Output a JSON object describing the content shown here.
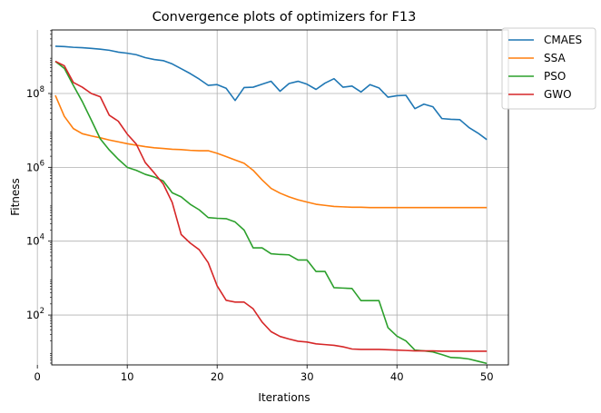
{
  "chart_data": {
    "type": "line",
    "title": "Convergence plots of optimizers for F13",
    "xlabel": "Iterations",
    "ylabel": "Fitness",
    "xlim": [
      1.6,
      52.4
    ],
    "ylim_log10": [
      0.65,
      9.72
    ],
    "yscale": "log",
    "xticks": [
      0,
      10,
      20,
      30,
      40,
      50
    ],
    "yticks": [
      {
        "exp": 2,
        "base": "10",
        "sup": "2"
      },
      {
        "exp": 4,
        "base": "10",
        "sup": "4"
      },
      {
        "exp": 6,
        "base": "10",
        "sup": "6"
      },
      {
        "exp": 8,
        "base": "10",
        "sup": "8"
      }
    ],
    "grid": true,
    "legend_position": "upper-right-outside",
    "x": [
      2,
      3,
      4,
      5,
      6,
      7,
      8,
      9,
      10,
      11,
      12,
      13,
      14,
      15,
      16,
      17,
      18,
      19,
      20,
      21,
      22,
      23,
      24,
      25,
      26,
      27,
      28,
      29,
      30,
      31,
      32,
      33,
      34,
      35,
      36,
      37,
      38,
      39,
      40,
      41,
      42,
      43,
      44,
      45,
      46,
      47,
      48,
      49,
      50
    ],
    "series": [
      {
        "name": "CMAES",
        "color": "#1f77b4",
        "log10_values": [
          9.28,
          9.27,
          9.25,
          9.24,
          9.22,
          9.2,
          9.17,
          9.12,
          9.09,
          9.05,
          8.97,
          8.92,
          8.89,
          8.8,
          8.67,
          8.54,
          8.39,
          8.22,
          8.24,
          8.14,
          7.81,
          8.16,
          8.17,
          8.25,
          8.33,
          8.06,
          8.27,
          8.33,
          8.25,
          8.11,
          8.28,
          8.4,
          8.17,
          8.2,
          8.04,
          8.24,
          8.15,
          7.9,
          7.94,
          7.95,
          7.59,
          7.71,
          7.64,
          7.32,
          7.3,
          7.29,
          7.08,
          6.93,
          6.75
        ]
      },
      {
        "name": "SSA",
        "color": "#ff7f0e",
        "log10_values": [
          7.95,
          7.38,
          7.05,
          6.91,
          6.85,
          6.8,
          6.74,
          6.69,
          6.64,
          6.6,
          6.56,
          6.53,
          6.51,
          6.49,
          6.48,
          6.46,
          6.45,
          6.45,
          6.38,
          6.29,
          6.2,
          6.11,
          5.92,
          5.66,
          5.43,
          5.3,
          5.2,
          5.12,
          5.06,
          5.0,
          4.97,
          4.94,
          4.93,
          4.92,
          4.92,
          4.91,
          4.91,
          4.91,
          4.91,
          4.91,
          4.91,
          4.91,
          4.91,
          4.91,
          4.91,
          4.91,
          4.91,
          4.91,
          4.91
        ]
      },
      {
        "name": "PSO",
        "color": "#2ca02c",
        "log10_values": [
          8.87,
          8.68,
          8.22,
          7.78,
          7.28,
          6.77,
          6.47,
          6.22,
          6.0,
          5.92,
          5.81,
          5.74,
          5.63,
          5.31,
          5.2,
          5.0,
          4.85,
          4.64,
          4.62,
          4.61,
          4.52,
          4.3,
          3.82,
          3.82,
          3.66,
          3.64,
          3.63,
          3.49,
          3.49,
          3.18,
          3.18,
          2.74,
          2.73,
          2.72,
          2.39,
          2.39,
          2.39,
          1.66,
          1.43,
          1.3,
          1.05,
          1.03,
          1.0,
          0.93,
          0.85,
          0.84,
          0.81,
          0.75,
          0.69
        ]
      },
      {
        "name": "GWO",
        "color": "#d62728",
        "log10_values": [
          8.87,
          8.75,
          8.3,
          8.17,
          8.0,
          7.91,
          7.41,
          7.25,
          6.9,
          6.63,
          6.13,
          5.85,
          5.55,
          5.05,
          4.18,
          3.95,
          3.77,
          3.42,
          2.79,
          2.4,
          2.35,
          2.35,
          2.17,
          1.81,
          1.55,
          1.42,
          1.35,
          1.29,
          1.27,
          1.22,
          1.2,
          1.18,
          1.14,
          1.08,
          1.07,
          1.07,
          1.07,
          1.06,
          1.05,
          1.04,
          1.03,
          1.03,
          1.03,
          1.02,
          1.02,
          1.02,
          1.02,
          1.02,
          1.02
        ]
      }
    ]
  }
}
